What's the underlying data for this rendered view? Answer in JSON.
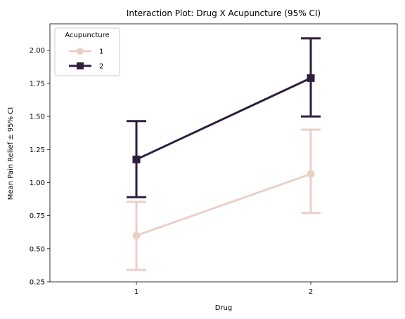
{
  "chart_data": {
    "type": "line",
    "title": "Interaction Plot: Drug X Acupuncture (95% CI)",
    "xlabel": "Drug",
    "ylabel": "Mean Pain Relief ± 95% CI",
    "categories": [
      "1",
      "2"
    ],
    "ylim": [
      0.25,
      2.2
    ],
    "yticks": [
      "0.25",
      "0.50",
      "0.75",
      "1.00",
      "1.25",
      "1.50",
      "1.75",
      "2.00"
    ],
    "grid": false,
    "legend": {
      "title": "Acupuncture",
      "placement": "top-left"
    },
    "series": [
      {
        "name": "1",
        "marker": "circle",
        "color": "#ebd0c8",
        "values": [
          0.6,
          1.065
        ],
        "ci_low": [
          0.34,
          0.77
        ],
        "ci_high": [
          0.855,
          1.4
        ]
      },
      {
        "name": "2",
        "marker": "square",
        "color": "#2d1e3e",
        "values": [
          1.175,
          1.79
        ],
        "ci_low": [
          0.89,
          1.5
        ],
        "ci_high": [
          1.465,
          2.09
        ]
      }
    ]
  }
}
